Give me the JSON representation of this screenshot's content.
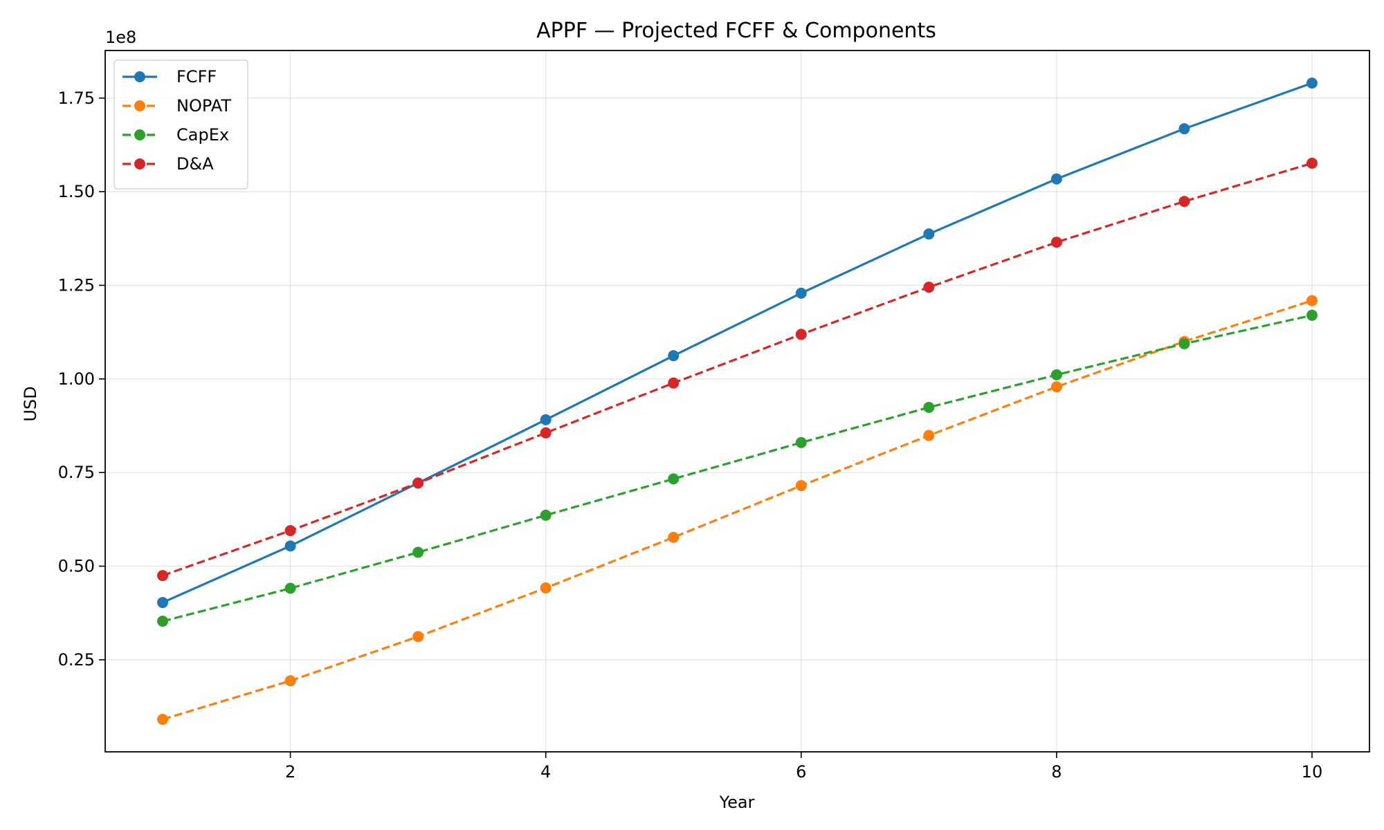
{
  "chart_data": {
    "type": "line",
    "title": "APPF — Projected FCFF & Components",
    "xlabel": "Year",
    "ylabel": "USD",
    "y_offset_text": "1e8",
    "x": [
      1,
      2,
      3,
      4,
      5,
      6,
      7,
      8,
      9,
      10
    ],
    "xlim": [
      0.55,
      10.45
    ],
    "ylim": [
      0.0042,
      1.877
    ],
    "x_ticks": [
      2,
      4,
      6,
      8,
      10
    ],
    "x_tick_labels": [
      "2",
      "4",
      "6",
      "8",
      "10"
    ],
    "y_ticks": [
      0.25,
      0.5,
      0.75,
      1.0,
      1.25,
      1.5,
      1.75
    ],
    "y_tick_labels": [
      "0.25",
      "0.50",
      "0.75",
      "1.00",
      "1.25",
      "1.50",
      "1.75"
    ],
    "grid": true,
    "legend_position": "upper-left",
    "series": [
      {
        "name": "FCFF",
        "color": "#1f77b4",
        "style": "solid",
        "values": [
          0.403,
          0.554,
          0.722,
          0.891,
          1.062,
          1.229,
          1.387,
          1.534,
          1.668,
          1.79
        ]
      },
      {
        "name": "NOPAT",
        "color": "#ff7f0e",
        "style": "dashed",
        "values": [
          0.091,
          0.194,
          0.312,
          0.442,
          0.577,
          0.715,
          0.849,
          0.979,
          1.1,
          1.209
        ]
      },
      {
        "name": "CapEx",
        "color": "#2ca02c",
        "style": "dashed",
        "values": [
          0.353,
          0.441,
          0.537,
          0.636,
          0.733,
          0.83,
          0.924,
          1.011,
          1.094,
          1.17
        ]
      },
      {
        "name": "D&A",
        "color": "#d62728",
        "style": "dashed",
        "values": [
          0.475,
          0.595,
          0.722,
          0.856,
          0.989,
          1.119,
          1.245,
          1.365,
          1.474,
          1.576
        ]
      }
    ]
  }
}
